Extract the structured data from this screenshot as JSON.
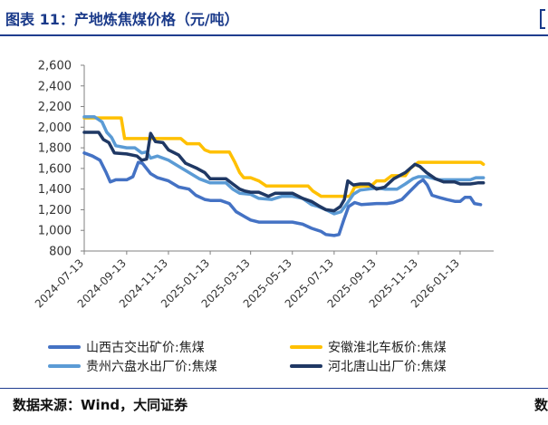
{
  "header": {
    "title": "图表 11：产地炼焦煤价格（元/吨）"
  },
  "footer": {
    "source": "数据来源：Wind，大同证券",
    "edge_char": "数"
  },
  "chart_data": {
    "type": "line",
    "title": "",
    "xlabel": "",
    "ylabel": "",
    "ylim": [
      800,
      2600
    ],
    "yticks": [
      800,
      1000,
      1200,
      1400,
      1600,
      1800,
      2000,
      2200,
      2400,
      2600
    ],
    "ytick_labels": [
      "800",
      "1,000",
      "1,200",
      "1,400",
      "1,600",
      "1,800",
      "2,000",
      "2,200",
      "2,400",
      "2,600"
    ],
    "x_start": "2024-07-13",
    "x_end": "2026-03-03",
    "xticks": [
      "2024-07-13",
      "2024-09-13",
      "2024-11-13",
      "2025-01-13",
      "2025-03-13",
      "2025-05-13",
      "2025-07-13",
      "2025-09-13",
      "2025-11-13",
      "2026-01-13"
    ],
    "grid": false,
    "legend": "bottom",
    "series": [
      {
        "name": "山西古交出矿价:焦煤",
        "color": "#4472c4",
        "points": [
          [
            "2024-07-13",
            1750
          ],
          [
            "2024-07-25",
            1720
          ],
          [
            "2024-08-05",
            1680
          ],
          [
            "2024-08-14",
            1560
          ],
          [
            "2024-08-20",
            1470
          ],
          [
            "2024-08-28",
            1490
          ],
          [
            "2024-09-13",
            1490
          ],
          [
            "2024-09-22",
            1520
          ],
          [
            "2024-09-30",
            1660
          ],
          [
            "2024-10-06",
            1650
          ],
          [
            "2024-10-18",
            1550
          ],
          [
            "2024-10-28",
            1510
          ],
          [
            "2024-11-13",
            1480
          ],
          [
            "2024-11-28",
            1420
          ],
          [
            "2024-12-13",
            1400
          ],
          [
            "2024-12-23",
            1340
          ],
          [
            "2025-01-05",
            1300
          ],
          [
            "2025-01-13",
            1290
          ],
          [
            "2025-01-28",
            1290
          ],
          [
            "2025-02-10",
            1260
          ],
          [
            "2025-02-20",
            1180
          ],
          [
            "2025-03-05",
            1130
          ],
          [
            "2025-03-13",
            1100
          ],
          [
            "2025-03-25",
            1080
          ],
          [
            "2025-04-13",
            1080
          ],
          [
            "2025-05-13",
            1080
          ],
          [
            "2025-05-28",
            1060
          ],
          [
            "2025-06-10",
            1020
          ],
          [
            "2025-06-24",
            990
          ],
          [
            "2025-07-01",
            960
          ],
          [
            "2025-07-13",
            950
          ],
          [
            "2025-07-20",
            960
          ],
          [
            "2025-07-27",
            1100
          ],
          [
            "2025-08-03",
            1230
          ],
          [
            "2025-08-12",
            1270
          ],
          [
            "2025-08-22",
            1250
          ],
          [
            "2025-09-13",
            1260
          ],
          [
            "2025-09-28",
            1260
          ],
          [
            "2025-10-08",
            1270
          ],
          [
            "2025-10-20",
            1300
          ],
          [
            "2025-11-01",
            1380
          ],
          [
            "2025-11-13",
            1460
          ],
          [
            "2025-11-20",
            1490
          ],
          [
            "2025-11-26",
            1440
          ],
          [
            "2025-12-03",
            1340
          ],
          [
            "2025-12-13",
            1320
          ],
          [
            "2025-12-24",
            1300
          ],
          [
            "2026-01-06",
            1280
          ],
          [
            "2026-01-13",
            1280
          ],
          [
            "2026-01-20",
            1320
          ],
          [
            "2026-01-28",
            1320
          ],
          [
            "2026-02-03",
            1260
          ],
          [
            "2026-02-12",
            1250
          ]
        ]
      },
      {
        "name": "安徽淮北车板价:焦煤",
        "color": "#ffc000",
        "points": [
          [
            "2024-07-13",
            2090
          ],
          [
            "2024-08-13",
            2090
          ],
          [
            "2024-09-05",
            2090
          ],
          [
            "2024-09-10",
            1890
          ],
          [
            "2024-10-13",
            1890
          ],
          [
            "2024-11-13",
            1890
          ],
          [
            "2024-12-01",
            1890
          ],
          [
            "2024-12-10",
            1840
          ],
          [
            "2024-12-28",
            1840
          ],
          [
            "2025-01-05",
            1780
          ],
          [
            "2025-01-13",
            1760
          ],
          [
            "2025-02-10",
            1760
          ],
          [
            "2025-02-18",
            1660
          ],
          [
            "2025-02-25",
            1560
          ],
          [
            "2025-03-03",
            1510
          ],
          [
            "2025-03-13",
            1510
          ],
          [
            "2025-03-25",
            1480
          ],
          [
            "2025-04-05",
            1430
          ],
          [
            "2025-05-13",
            1430
          ],
          [
            "2025-06-05",
            1430
          ],
          [
            "2025-06-12",
            1380
          ],
          [
            "2025-06-24",
            1330
          ],
          [
            "2025-07-13",
            1330
          ],
          [
            "2025-08-05",
            1330
          ],
          [
            "2025-08-12",
            1420
          ],
          [
            "2025-08-25",
            1430
          ],
          [
            "2025-09-05",
            1430
          ],
          [
            "2025-09-13",
            1480
          ],
          [
            "2025-09-25",
            1480
          ],
          [
            "2025-10-05",
            1530
          ],
          [
            "2025-10-25",
            1530
          ],
          [
            "2025-11-01",
            1600
          ],
          [
            "2025-11-13",
            1660
          ],
          [
            "2026-01-13",
            1660
          ],
          [
            "2026-02-12",
            1660
          ],
          [
            "2026-02-16",
            1640
          ]
        ]
      },
      {
        "name": "贵州六盘水出厂价:焦煤",
        "color": "#5b9bd5",
        "points": [
          [
            "2024-07-13",
            2100
          ],
          [
            "2024-07-28",
            2100
          ],
          [
            "2024-08-08",
            2050
          ],
          [
            "2024-08-15",
            1950
          ],
          [
            "2024-08-22",
            1900
          ],
          [
            "2024-08-28",
            1820
          ],
          [
            "2024-09-13",
            1800
          ],
          [
            "2024-09-25",
            1800
          ],
          [
            "2024-10-05",
            1750
          ],
          [
            "2024-10-12",
            1760
          ],
          [
            "2024-10-18",
            1700
          ],
          [
            "2024-10-28",
            1720
          ],
          [
            "2024-11-13",
            1680
          ],
          [
            "2024-11-28",
            1620
          ],
          [
            "2024-12-13",
            1560
          ],
          [
            "2024-12-28",
            1500
          ],
          [
            "2025-01-13",
            1460
          ],
          [
            "2025-01-25",
            1460
          ],
          [
            "2025-02-05",
            1460
          ],
          [
            "2025-02-15",
            1400
          ],
          [
            "2025-02-25",
            1360
          ],
          [
            "2025-03-13",
            1350
          ],
          [
            "2025-03-25",
            1310
          ],
          [
            "2025-04-13",
            1300
          ],
          [
            "2025-04-28",
            1330
          ],
          [
            "2025-05-13",
            1330
          ],
          [
            "2025-05-28",
            1310
          ],
          [
            "2025-06-10",
            1250
          ],
          [
            "2025-06-20",
            1230
          ],
          [
            "2025-07-01",
            1200
          ],
          [
            "2025-07-13",
            1160
          ],
          [
            "2025-07-23",
            1180
          ],
          [
            "2025-08-01",
            1260
          ],
          [
            "2025-08-10",
            1350
          ],
          [
            "2025-08-20",
            1390
          ],
          [
            "2025-09-01",
            1400
          ],
          [
            "2025-09-13",
            1410
          ],
          [
            "2025-09-25",
            1400
          ],
          [
            "2025-10-13",
            1400
          ],
          [
            "2025-10-25",
            1450
          ],
          [
            "2025-11-05",
            1500
          ],
          [
            "2025-11-13",
            1520
          ],
          [
            "2025-11-25",
            1520
          ],
          [
            "2025-12-13",
            1490
          ],
          [
            "2026-01-13",
            1490
          ],
          [
            "2026-01-28",
            1490
          ],
          [
            "2026-02-05",
            1510
          ],
          [
            "2026-02-16",
            1510
          ]
        ]
      },
      {
        "name": "河北唐山出厂价:焦煤",
        "color": "#1f3864",
        "points": [
          [
            "2024-07-13",
            1950
          ],
          [
            "2024-08-03",
            1950
          ],
          [
            "2024-08-10",
            1880
          ],
          [
            "2024-08-18",
            1850
          ],
          [
            "2024-08-26",
            1750
          ],
          [
            "2024-09-13",
            1740
          ],
          [
            "2024-09-28",
            1720
          ],
          [
            "2024-10-05",
            1680
          ],
          [
            "2024-10-12",
            1690
          ],
          [
            "2024-10-18",
            1940
          ],
          [
            "2024-10-25",
            1860
          ],
          [
            "2024-11-05",
            1850
          ],
          [
            "2024-11-13",
            1780
          ],
          [
            "2024-11-28",
            1730
          ],
          [
            "2024-12-08",
            1650
          ],
          [
            "2024-12-25",
            1600
          ],
          [
            "2025-01-05",
            1560
          ],
          [
            "2025-01-13",
            1500
          ],
          [
            "2025-02-05",
            1500
          ],
          [
            "2025-02-15",
            1450
          ],
          [
            "2025-02-25",
            1400
          ],
          [
            "2025-03-05",
            1380
          ],
          [
            "2025-03-13",
            1370
          ],
          [
            "2025-03-25",
            1370
          ],
          [
            "2025-04-08",
            1330
          ],
          [
            "2025-04-18",
            1360
          ],
          [
            "2025-05-13",
            1360
          ],
          [
            "2025-05-28",
            1310
          ],
          [
            "2025-06-10",
            1280
          ],
          [
            "2025-06-20",
            1240
          ],
          [
            "2025-07-01",
            1200
          ],
          [
            "2025-07-13",
            1190
          ],
          [
            "2025-07-22",
            1230
          ],
          [
            "2025-07-28",
            1300
          ],
          [
            "2025-08-02",
            1480
          ],
          [
            "2025-08-10",
            1440
          ],
          [
            "2025-08-20",
            1450
          ],
          [
            "2025-09-02",
            1450
          ],
          [
            "2025-09-13",
            1400
          ],
          [
            "2025-09-25",
            1420
          ],
          [
            "2025-10-08",
            1500
          ],
          [
            "2025-10-25",
            1560
          ],
          [
            "2025-11-08",
            1640
          ],
          [
            "2025-11-15",
            1620
          ],
          [
            "2025-11-25",
            1560
          ],
          [
            "2025-12-08",
            1500
          ],
          [
            "2025-12-20",
            1470
          ],
          [
            "2026-01-05",
            1470
          ],
          [
            "2026-01-13",
            1450
          ],
          [
            "2026-01-28",
            1450
          ],
          [
            "2026-02-08",
            1460
          ],
          [
            "2026-02-16",
            1460
          ]
        ]
      }
    ]
  }
}
